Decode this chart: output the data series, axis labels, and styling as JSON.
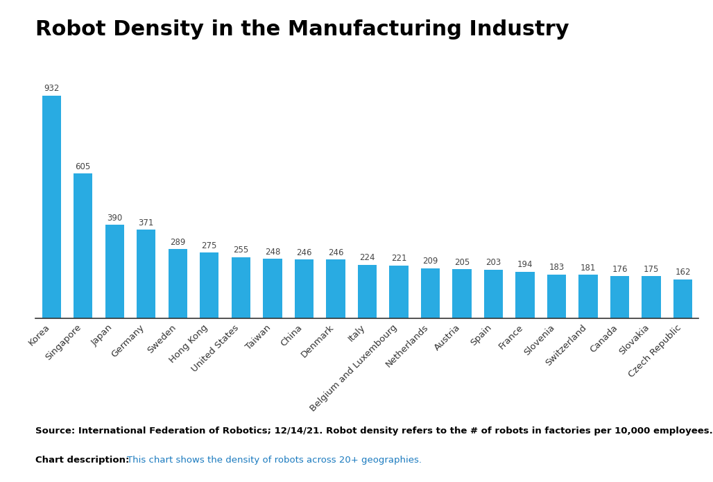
{
  "title": "Robot Density in the Manufacturing Industry",
  "categories": [
    "Korea",
    "Singapore",
    "Japan",
    "Germany",
    "Sweden",
    "Hong Kong",
    "United States",
    "Taiwan",
    "China",
    "Denmark",
    "Italy",
    "Belgium and Luxembourg",
    "Netherlands",
    "Austria",
    "Spain",
    "France",
    "Slovenia",
    "Switzerland",
    "Canada",
    "Slovakia",
    "Czech Republic"
  ],
  "values": [
    932,
    605,
    390,
    371,
    289,
    275,
    255,
    248,
    246,
    246,
    224,
    221,
    209,
    205,
    203,
    194,
    183,
    181,
    176,
    175,
    162
  ],
  "bar_color": "#29ABE2",
  "background_color": "#ffffff",
  "source_label": "Source: International Federation of Robotics; 12/14/21. Robot density refers to the # of robots in factories per 10,000 employees.",
  "chart_desc_label": "Chart description:",
  "chart_desc_text": "This chart shows the density of robots across 20+ geographies.",
  "title_fontsize": 22,
  "label_fontsize": 9.5,
  "source_fontsize": 9.5,
  "value_fontsize": 8.5,
  "ylim": [
    0,
    1050
  ]
}
